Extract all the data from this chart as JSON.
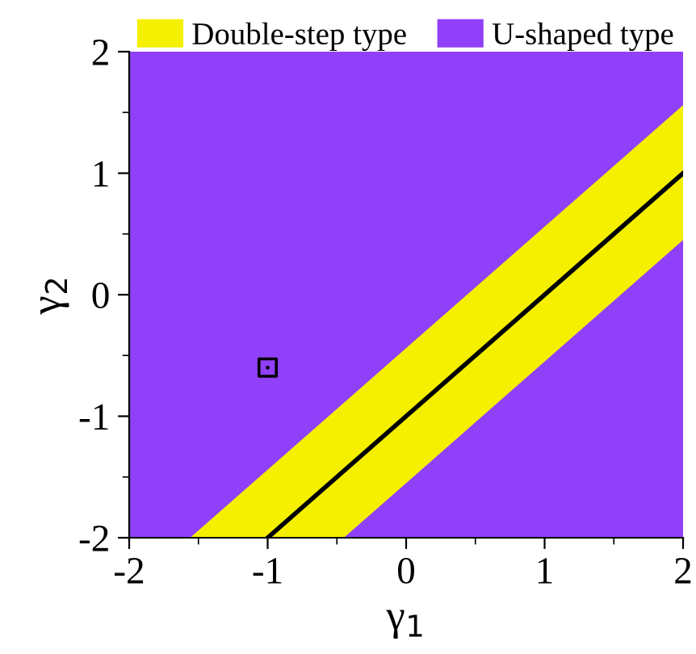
{
  "chart_data": {
    "type": "area",
    "xlabel": "γ$_{1}$",
    "ylabel": "γ$_{2}$",
    "series": [
      {
        "name": "Double-step type",
        "color": "#f5f000",
        "x": [
          -1.56,
          2
        ],
        "values": [
          -2,
          1.56
        ]
      },
      {
        "name": "U-shaped type",
        "color": "#9040f8",
        "x": [
          -0.45,
          2
        ],
        "values": [
          -2,
          0.45
        ]
      },
      {
        "type": "line",
        "color": "#000000",
        "x": [
          -1,
          2
        ],
        "values": [
          -2,
          1
        ]
      },
      {
        "type": "scatter",
        "color": "#000000",
        "marker": "square",
        "x": [
          -1
        ],
        "values": [
          -0.6
        ]
      }
    ],
    "xlim": [
      -2,
      2
    ],
    "ylim": [
      -2,
      2
    ],
    "xticks": [
      {
        "value": -2,
        "label": "-2"
      },
      {
        "value": -1,
        "label": "-1"
      },
      0,
      1,
      2
    ],
    "yticks": [
      {
        "value": -2,
        "label": "-2"
      },
      {
        "value": -1,
        "label": "-1"
      },
      0,
      1,
      2
    ],
    "legend": "top",
    "grid": false
  }
}
